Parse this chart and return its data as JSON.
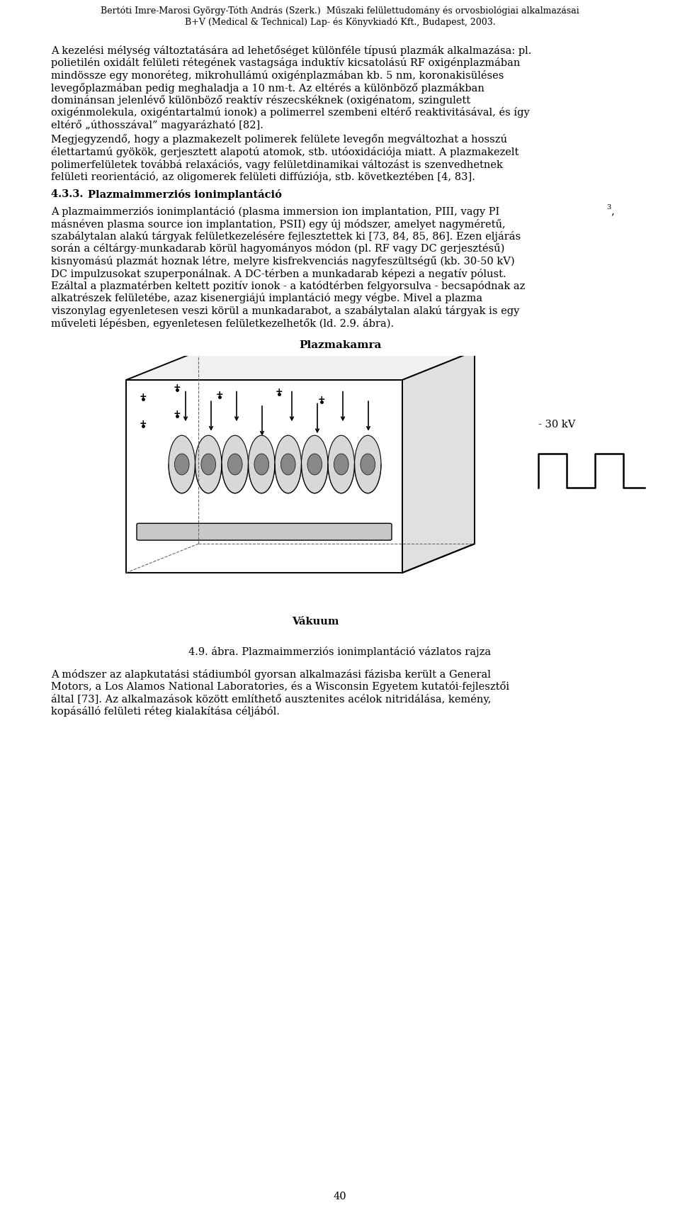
{
  "header_line1": "Bertóti Imre-Marosi György-Tóth András (Szerk.)  Műszaki felülettudomány és orvosbiológiai alkalmazásai",
  "header_line2": "B+V (Medical & Technical) Lap- és Könyvkiadó Kft., Budapest, 2003.",
  "page_number": "40",
  "background_color": "#ffffff",
  "text_color": "#000000",
  "body_lines": [
    "A kezelési mélység változtatására ad lehetőséget különféle típusú plazmák alkalmazása: pl.",
    "polietilén oxidált felületi rétegének vastagsága induktív kicsatolású RF oxigénplazmában",
    "mindössze egy monoréteg, mikrohullámú oxigénplazmában kb. 5 nm, koronakisüléses",
    "levegőplazmában pedig meghaladja a 10 nm-t. Az eltérés a különböző plazmákban",
    "dominánsan jelenlévő különböző reaktív részecskéknek (oxigénatom, szingulett",
    "oxigénmolekula, oxigéntartalmú ionok) a polimerrel szembeni eltérő reaktivitásával, és így",
    "eltérő „úthosszával” magyarázható [82]."
  ],
  "para2_lines": [
    "Megjegyzendő, hogy a plazmakezelt polimerek felülete levegőn megváltozhat a hosszú",
    "élettartamú gyökök, gerjesztett alapotú atomok, stb. utóoxidációja miatt. A plazmakezelt",
    "polimerfelületek továbbá relaxációs, vagy felületdinamikai változást is szenvedhetnek",
    "felületi reorientáció, az oligomerek felületi diffúziója, stb. következtében [4, 83]."
  ],
  "section_num": "4.3.3.",
  "section_title": "Plazmaimmerziós ionimplantáció",
  "para3_line1_main": "A plazmaimmerziós ionimplantáció (plasma immersion ion implantation, PIII, vagy PI",
  "para3_line1_sup": "3",
  "para3_line1_end": ",",
  "para3_lines": [
    "másnéven plasma source ion implantation, PSII) egy új módszer, amelyet nagyméretű,",
    "szabálytalan alakú tárgyak felületkezelésére fejlesztettek ki [73, 84, 85, 86]. Ezen eljárás",
    "során a céltárgy-munkadarab körül hagyományos módon (pl. RF vagy DC gerjesztésű)",
    "kisnyomású plazmát hoznak létre, melyre kisfrekvenciás nagyfeszültségű (kb. 30-50 kV)",
    "DC impulzusokat szuperponálnak. A DC-térben a munkadarab képezi a negatív pólust.",
    "Ezáltal a plazmatérben keltett pozitív ionok - a katódtérben felgyorsulva - becsapódnak az",
    "alkatrészek felületébe, azaz kisenergiájú implantáció megy végbe. Mivel a plazma",
    "viszonylag egyenletesen veszi körül a munkadarabot, a szabálytalan alakú tárgyak is egy",
    "műveleti lépésben, egyenletesen felületkezelhetők (ld. 2.9. ábra)."
  ],
  "figure_title": "Plazmakamra",
  "vacuum_label": "Vákuum",
  "voltage_label": "- 30 kV",
  "figure_caption": "4.9. ábra. Plazmaimmerziós ionimplantáció vázlatos rajza",
  "para4_lines": [
    "A módszer az alapkutatási stádiumból gyorsan alkalmazási fázisba került a General",
    "Motors, a Los Alamos National Laboratories, és a Wisconsin Egyetem kutatói-fejlesztői",
    "által [73]. Az alkalmazások között említhető ausztenites acélok nitridálása, kemény,",
    "kopásálló felületi réteg kialakítása céljából."
  ]
}
